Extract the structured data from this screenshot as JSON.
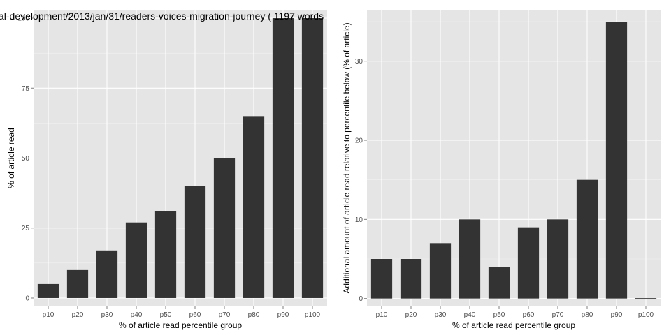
{
  "chart_data": [
    {
      "type": "bar",
      "title": "al-development/2013/jan/31/readers-voices-migration-journey ( 1197 words",
      "xlabel": "% of article read percentile group",
      "ylabel": "% of article read",
      "categories": [
        "p10",
        "p20",
        "p30",
        "p40",
        "p50",
        "p60",
        "p70",
        "p80",
        "p90",
        "p100"
      ],
      "values": [
        5,
        10,
        17,
        27,
        31,
        40,
        50,
        65,
        100,
        100
      ],
      "ylim": [
        -3,
        103
      ],
      "yticks": [
        0,
        25,
        50,
        75,
        100
      ],
      "grid": true,
      "bar_color": "#333333",
      "panel_color": "#e5e5e5"
    },
    {
      "type": "bar",
      "title": "",
      "xlabel": "% of article read percentile group",
      "ylabel": "Additional amount of article read relative to percentile below (% of article)",
      "categories": [
        "p10",
        "p20",
        "p30",
        "p40",
        "p50",
        "p60",
        "p70",
        "p80",
        "p90",
        "p100"
      ],
      "values": [
        5,
        5,
        7,
        10,
        4,
        9,
        10,
        15,
        35,
        0
      ],
      "ylim": [
        -1,
        36.5
      ],
      "yticks": [
        0,
        10,
        20,
        30
      ],
      "grid": true,
      "bar_color": "#333333",
      "panel_color": "#e5e5e5"
    }
  ]
}
